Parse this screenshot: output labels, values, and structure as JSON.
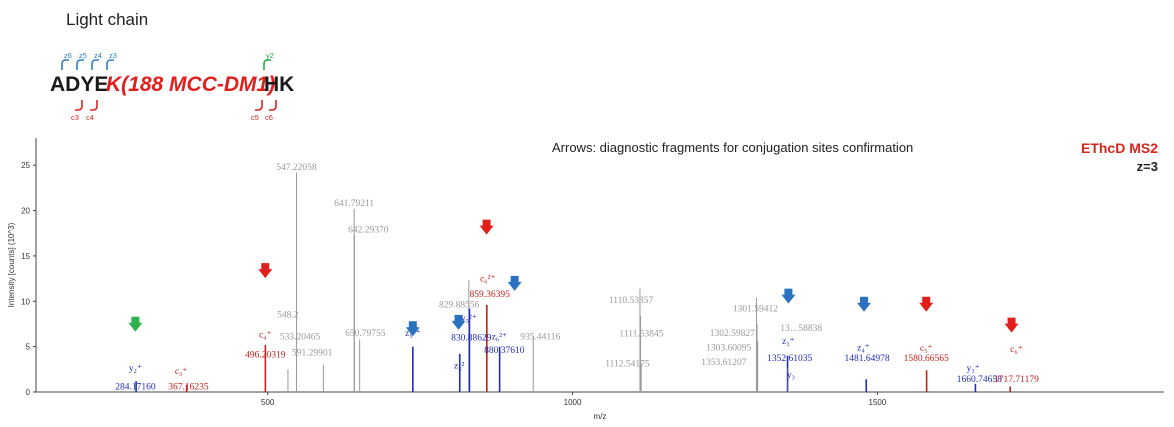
{
  "header": {
    "title": "Light chain",
    "sequence": {
      "black_start": "ADYE",
      "red_middle": "K(188 MCC-DM1)",
      "black_end": "HK",
      "top_ions": [
        {
          "label": "z6",
          "color": "#2f7fc1"
        },
        {
          "label": "z5",
          "color": "#2f7fc1"
        },
        {
          "label": "z4",
          "color": "#2f7fc1"
        },
        {
          "label": "z3",
          "color": "#2f7fc1"
        },
        {
          "label": "y2",
          "color": "#2aa84a"
        }
      ],
      "bottom_ions": [
        {
          "label": "c3",
          "color": "#d7261e"
        },
        {
          "label": "c4",
          "color": "#d7261e"
        },
        {
          "label": "c5",
          "color": "#d7261e"
        },
        {
          "label": "c6",
          "color": "#d7261e"
        }
      ]
    }
  },
  "annotations": {
    "arrows_note": "Arrows: diagnostic fragments for conjugation sites confirmation",
    "method": "EThcD MS2",
    "charge": "z=3"
  },
  "colors": {
    "gray": "#9a9a9a",
    "blue": "#1f2dbb",
    "red": "#c0221b",
    "arrow_blue": "#2a72c0",
    "arrow_red": "#e0201c",
    "arrow_green": "#2bb24c"
  },
  "chart_data": {
    "type": "bar",
    "xlabel": "m/z",
    "ylabel": "Intensity [counts] (10^3)",
    "xlim": [
      120,
      1970
    ],
    "ylim": [
      0,
      28
    ],
    "x_ticks": [
      500,
      1000,
      1500
    ],
    "y_ticks": [
      0,
      5,
      10,
      15,
      20,
      25
    ],
    "peaks": [
      {
        "mz": 284.1716,
        "intensity": 1.2,
        "color": "blue"
      },
      {
        "mz": 367.16235,
        "intensity": 0.8,
        "color": "red"
      },
      {
        "mz": 496.20319,
        "intensity": 5.2,
        "color": "red"
      },
      {
        "mz": 533.20465,
        "intensity": 2.5,
        "color": "gray"
      },
      {
        "mz": 547.22058,
        "intensity": 24.2,
        "color": "gray"
      },
      {
        "mz": 591.29901,
        "intensity": 3.0,
        "color": "gray"
      },
      {
        "mz": 641.79211,
        "intensity": 20.2,
        "color": "gray"
      },
      {
        "mz": 642.2937,
        "intensity": 17.3,
        "color": "gray"
      },
      {
        "mz": 650.79755,
        "intensity": 5.8,
        "color": "gray"
      },
      {
        "mz": 738.0,
        "intensity": 5.0,
        "color": "blue"
      },
      {
        "mz": 815.0,
        "intensity": 4.2,
        "color": "blue"
      },
      {
        "mz": 829.88556,
        "intensity": 12.3,
        "color": "gray"
      },
      {
        "mz": 830.88629,
        "intensity": 9.2,
        "color": "blue"
      },
      {
        "mz": 859.36395,
        "intensity": 9.6,
        "color": "red"
      },
      {
        "mz": 880.3761,
        "intensity": 5.0,
        "color": "blue"
      },
      {
        "mz": 935.44116,
        "intensity": 6.2,
        "color": "gray"
      },
      {
        "mz": 1110.53357,
        "intensity": 11.4,
        "color": "gray"
      },
      {
        "mz": 1111.53845,
        "intensity": 8.4,
        "color": "gray"
      },
      {
        "mz": 1112.54175,
        "intensity": 3.2,
        "color": "gray"
      },
      {
        "mz": 1301.59412,
        "intensity": 10.4,
        "color": "gray"
      },
      {
        "mz": 1302.59827,
        "intensity": 7.5,
        "color": "gray"
      },
      {
        "mz": 1303.60095,
        "intensity": 5.6,
        "color": "gray"
      },
      {
        "mz": 1352.61035,
        "intensity": 4.0,
        "color": "blue"
      },
      {
        "mz": 1353.61207,
        "intensity": 2.7,
        "color": "gray"
      },
      {
        "mz": 1481.64978,
        "intensity": 1.4,
        "color": "blue"
      },
      {
        "mz": 1580.66565,
        "intensity": 2.4,
        "color": "red"
      },
      {
        "mz": 1660.74658,
        "intensity": 0.9,
        "color": "blue"
      },
      {
        "mz": 1717.71179,
        "intensity": 0.6,
        "color": "red"
      }
    ],
    "peak_labels": [
      {
        "text": "547.22058",
        "mz": 547.22058,
        "intensity": 24.5,
        "color": "gray"
      },
      {
        "text": "641.79211",
        "mz": 641.79211,
        "intensity": 20.5,
        "color": "gray"
      },
      {
        "text": "642.29370",
        "mz": 665,
        "intensity": 17.6,
        "color": "gray"
      },
      {
        "text": "548.2",
        "mz": 533,
        "intensity": 8.2,
        "color": "gray"
      },
      {
        "text": "533.20465",
        "mz": 553,
        "intensity": 5.8,
        "color": "gray"
      },
      {
        "text": "650.79755",
        "mz": 660,
        "intensity": 6.2,
        "color": "gray"
      },
      {
        "text": "591.29901",
        "mz": 573,
        "intensity": 4.0,
        "color": "gray"
      },
      {
        "text": "829.88556",
        "mz": 814,
        "intensity": 9.3,
        "color": "gray"
      },
      {
        "text": "935.44116",
        "mz": 947,
        "intensity": 5.8,
        "color": "gray"
      },
      {
        "text": "1110.53357",
        "mz": 1096,
        "intensity": 9.8,
        "color": "gray"
      },
      {
        "text": "1111.53845",
        "mz": 1113,
        "intensity": 6.1,
        "color": "gray"
      },
      {
        "text": "1112.54175",
        "mz": 1090,
        "intensity": 2.8,
        "color": "gray"
      },
      {
        "text": "1301.59412",
        "mz": 1300,
        "intensity": 8.9,
        "color": "gray"
      },
      {
        "text": "1302.59827",
        "mz": 1262,
        "intensity": 6.2,
        "color": "gray"
      },
      {
        "text": "1303.60095",
        "mz": 1256,
        "intensity": 4.6,
        "color": "gray"
      },
      {
        "text": "1353.61207",
        "mz": 1248,
        "intensity": 3.0,
        "color": "gray"
      },
      {
        "text": "13‥.58838",
        "mz": 1375,
        "intensity": 6.7,
        "color": "gray"
      },
      {
        "text": "284.17160",
        "mz": 283,
        "intensity": 0.3,
        "color": "blue"
      },
      {
        "text": "367.16235",
        "mz": 370,
        "intensity": 0.3,
        "color": "red"
      },
      {
        "text": "496.20319",
        "mz": 496,
        "intensity": 3.8,
        "color": "red"
      },
      {
        "text": "830.88629",
        "mz": 834,
        "intensity": 5.7,
        "color": "blue"
      },
      {
        "text": "859.36395",
        "mz": 864,
        "intensity": 10.5,
        "color": "red"
      },
      {
        "text": "880.37610",
        "mz": 888,
        "intensity": 4.3,
        "color": "blue"
      },
      {
        "text": "1352.61035",
        "mz": 1356,
        "intensity": 3.4,
        "color": "blue"
      },
      {
        "text": "1481.64978",
        "mz": 1483,
        "intensity": 3.4,
        "color": "blue"
      },
      {
        "text": "1580.66565",
        "mz": 1580,
        "intensity": 3.4,
        "color": "red"
      },
      {
        "text": "1660.74658",
        "mz": 1667,
        "intensity": 1.1,
        "color": "blue"
      },
      {
        "text": "1717.71179",
        "mz": 1728,
        "intensity": 1.1,
        "color": "red"
      }
    ],
    "ion_labels": [
      {
        "text": "y₂⁺",
        "mz": 283,
        "intensity": 2.3,
        "color": "blue"
      },
      {
        "text": "c₃⁺",
        "mz": 358,
        "intensity": 2.0,
        "color": "red"
      },
      {
        "text": "c₄⁺",
        "mz": 496,
        "intensity": 6.0,
        "color": "red"
      },
      {
        "text": "z₅²⁺",
        "mz": 738,
        "intensity": 6.2,
        "color": "blue"
      },
      {
        "text": "z₃²",
        "mz": 814,
        "intensity": 2.6,
        "color": "blue"
      },
      {
        "text": "y₅²⁺",
        "mz": 830,
        "intensity": 7.8,
        "color": "blue"
      },
      {
        "text": "c₆²⁺",
        "mz": 861,
        "intensity": 12.2,
        "color": "red"
      },
      {
        "text": "z₆²⁺",
        "mz": 880,
        "intensity": 5.8,
        "color": "blue"
      },
      {
        "text": "z₃⁺",
        "mz": 1354,
        "intensity": 5.3,
        "color": "blue"
      },
      {
        "text": "y₃",
        "mz": 1358,
        "intensity": 1.6,
        "color": "blue"
      },
      {
        "text": "z₄⁺",
        "mz": 1477,
        "intensity": 4.6,
        "color": "blue"
      },
      {
        "text": "c₅⁺",
        "mz": 1580,
        "intensity": 4.5,
        "color": "red"
      },
      {
        "text": "y₃⁺",
        "mz": 1657,
        "intensity": 2.3,
        "color": "blue"
      },
      {
        "text": "c₆⁺",
        "mz": 1728,
        "intensity": 4.4,
        "color": "red"
      }
    ],
    "arrows": [
      {
        "mz": 283,
        "intensity": 8.3,
        "color": "green"
      },
      {
        "mz": 496,
        "intensity": 14.2,
        "color": "red"
      },
      {
        "mz": 738,
        "intensity": 7.8,
        "color": "blue"
      },
      {
        "mz": 813,
        "intensity": 8.5,
        "color": "blue"
      },
      {
        "mz": 859,
        "intensity": 19.0,
        "color": "red"
      },
      {
        "mz": 905,
        "intensity": 12.8,
        "color": "blue"
      },
      {
        "mz": 1354,
        "intensity": 11.4,
        "color": "blue"
      },
      {
        "mz": 1478,
        "intensity": 10.5,
        "color": "blue"
      },
      {
        "mz": 1580,
        "intensity": 10.5,
        "color": "red"
      },
      {
        "mz": 1720,
        "intensity": 8.2,
        "color": "red"
      }
    ]
  }
}
